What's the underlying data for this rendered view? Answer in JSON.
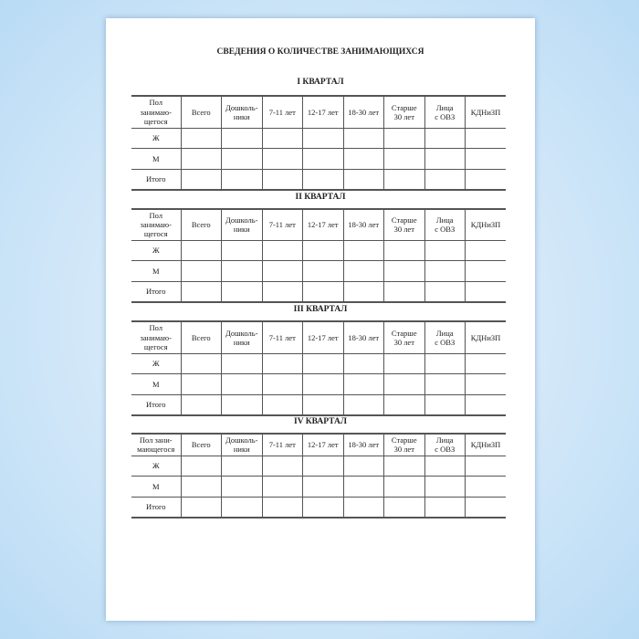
{
  "document": {
    "title": "СВЕДЕНИЯ О КОЛИЧЕСТВЕ ЗАНИМАЮЩИХСЯ",
    "columns": [
      "Всего",
      "Дошколь-\nники",
      "7-11 лет",
      "12-17 лет",
      "18-30 лет",
      "Старше\n30 лет",
      "Лица\nс ОВЗ",
      "КДНиЗП"
    ],
    "rows": [
      "Ж",
      "М",
      "Итого"
    ],
    "quarters": [
      {
        "title": "I КВАРТАЛ",
        "first_header": "Пол\nзанимаю-\nщегося"
      },
      {
        "title": "II КВАРТАЛ",
        "first_header": "Пол\nзанимаю-\nщегося"
      },
      {
        "title": "III КВАРТАЛ",
        "first_header": "Пол\nзанимаю-\nщегося"
      },
      {
        "title": "IV КВАРТАЛ",
        "first_header": "Пол зани-\nмающегося"
      }
    ]
  }
}
